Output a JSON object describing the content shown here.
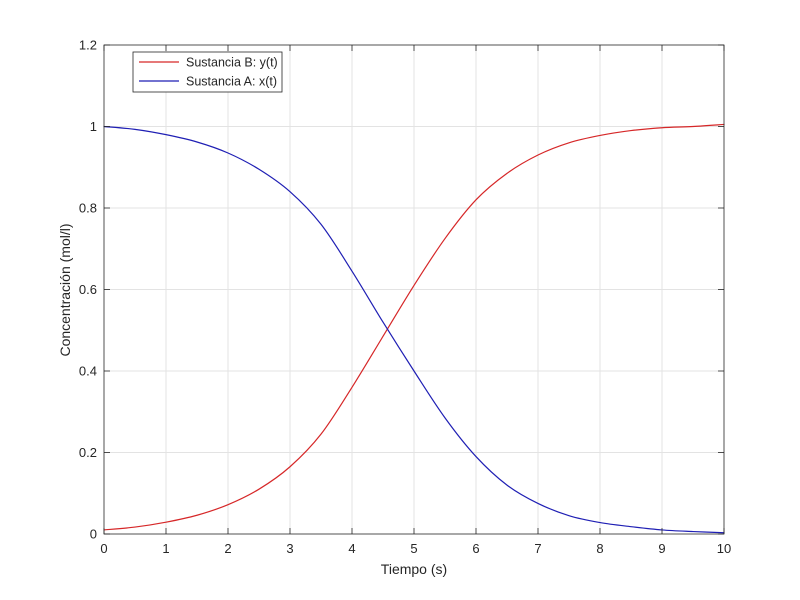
{
  "chart_data": {
    "type": "line",
    "title": "",
    "xlabel": "Tiempo (s)",
    "ylabel": "Concentración (mol/l)",
    "xlim": [
      0,
      10
    ],
    "ylim": [
      0,
      1.2
    ],
    "xticks": [
      "0",
      "1",
      "2",
      "3",
      "4",
      "5",
      "6",
      "7",
      "8",
      "9",
      "10"
    ],
    "yticks": [
      "0",
      "0.2",
      "0.4",
      "0.6",
      "0.8",
      "1",
      "1.2"
    ],
    "grid": true,
    "legend_position": "top-left",
    "series": [
      {
        "name": "Sustancia B: y(t)",
        "color": "#d62728",
        "x": [
          0,
          0.5,
          1,
          1.5,
          2,
          2.5,
          3,
          3.5,
          4,
          4.5,
          5,
          5.5,
          6,
          6.5,
          7,
          7.5,
          8,
          8.5,
          9,
          9.5,
          10
        ],
        "y": [
          0.01,
          0.017,
          0.029,
          0.046,
          0.072,
          0.11,
          0.165,
          0.245,
          0.36,
          0.485,
          0.61,
          0.725,
          0.82,
          0.885,
          0.93,
          0.96,
          0.978,
          0.99,
          0.997,
          1.0,
          1.005
        ]
      },
      {
        "name": "Sustancia A: x(t)",
        "color": "#1f1fb4",
        "x": [
          0,
          0.5,
          1,
          1.5,
          2,
          2.5,
          3,
          3.5,
          4,
          4.5,
          5,
          5.5,
          6,
          6.5,
          7,
          7.5,
          8,
          8.5,
          9,
          9.5,
          10
        ],
        "y": [
          1.0,
          0.993,
          0.98,
          0.962,
          0.935,
          0.895,
          0.84,
          0.76,
          0.645,
          0.52,
          0.4,
          0.285,
          0.19,
          0.12,
          0.075,
          0.045,
          0.028,
          0.018,
          0.01,
          0.006,
          0.003
        ]
      }
    ]
  }
}
